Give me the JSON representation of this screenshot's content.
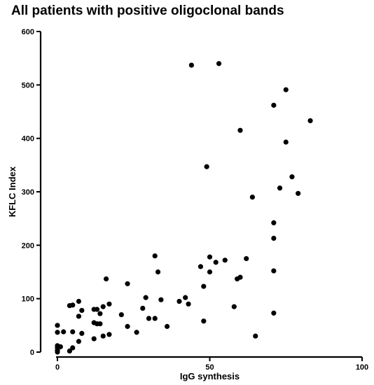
{
  "chart_data": {
    "type": "scatter",
    "title": "All patients with positive oligoclonal bands",
    "xlabel": "IgG synthesis",
    "ylabel": "KFLC Index",
    "xlim": [
      0,
      100
    ],
    "ylim": [
      0,
      600
    ],
    "xticks": [
      0,
      50,
      100
    ],
    "yticks": [
      0,
      100,
      200,
      300,
      400,
      500,
      600
    ],
    "grid": false,
    "legend": "none",
    "marker_color": "#000000",
    "points": [
      {
        "x": 0,
        "y": 0
      },
      {
        "x": 0,
        "y": 3
      },
      {
        "x": 0,
        "y": 8
      },
      {
        "x": 0,
        "y": 12
      },
      {
        "x": 0,
        "y": 37
      },
      {
        "x": 0,
        "y": 50
      },
      {
        "x": 1,
        "y": 10
      },
      {
        "x": 2,
        "y": 38
      },
      {
        "x": 4,
        "y": 2
      },
      {
        "x": 4,
        "y": 87
      },
      {
        "x": 5,
        "y": 38
      },
      {
        "x": 5,
        "y": 8
      },
      {
        "x": 5,
        "y": 88
      },
      {
        "x": 7,
        "y": 20
      },
      {
        "x": 7,
        "y": 67
      },
      {
        "x": 7,
        "y": 95
      },
      {
        "x": 8,
        "y": 35
      },
      {
        "x": 8,
        "y": 78
      },
      {
        "x": 12,
        "y": 25
      },
      {
        "x": 12,
        "y": 55
      },
      {
        "x": 12,
        "y": 80
      },
      {
        "x": 13,
        "y": 53
      },
      {
        "x": 13,
        "y": 80
      },
      {
        "x": 14,
        "y": 53
      },
      {
        "x": 14,
        "y": 72
      },
      {
        "x": 15,
        "y": 30
      },
      {
        "x": 15,
        "y": 85
      },
      {
        "x": 16,
        "y": 137
      },
      {
        "x": 17,
        "y": 33
      },
      {
        "x": 17,
        "y": 90
      },
      {
        "x": 21,
        "y": 70
      },
      {
        "x": 23,
        "y": 48
      },
      {
        "x": 23,
        "y": 128
      },
      {
        "x": 26,
        "y": 37
      },
      {
        "x": 28,
        "y": 82
      },
      {
        "x": 29,
        "y": 102
      },
      {
        "x": 30,
        "y": 63
      },
      {
        "x": 32,
        "y": 63
      },
      {
        "x": 32,
        "y": 180
      },
      {
        "x": 33,
        "y": 150
      },
      {
        "x": 34,
        "y": 98
      },
      {
        "x": 36,
        "y": 48
      },
      {
        "x": 40,
        "y": 95
      },
      {
        "x": 42,
        "y": 102
      },
      {
        "x": 43,
        "y": 90
      },
      {
        "x": 44,
        "y": 537
      },
      {
        "x": 47,
        "y": 160
      },
      {
        "x": 48,
        "y": 58
      },
      {
        "x": 48,
        "y": 123
      },
      {
        "x": 49,
        "y": 347
      },
      {
        "x": 50,
        "y": 150
      },
      {
        "x": 50,
        "y": 178
      },
      {
        "x": 52,
        "y": 168
      },
      {
        "x": 53,
        "y": 540
      },
      {
        "x": 55,
        "y": 172
      },
      {
        "x": 58,
        "y": 85
      },
      {
        "x": 59,
        "y": 137
      },
      {
        "x": 60,
        "y": 140
      },
      {
        "x": 60,
        "y": 415
      },
      {
        "x": 62,
        "y": 175
      },
      {
        "x": 64,
        "y": 290
      },
      {
        "x": 65,
        "y": 30
      },
      {
        "x": 71,
        "y": 73
      },
      {
        "x": 71,
        "y": 152
      },
      {
        "x": 71,
        "y": 213
      },
      {
        "x": 71,
        "y": 242
      },
      {
        "x": 71,
        "y": 462
      },
      {
        "x": 73,
        "y": 307
      },
      {
        "x": 75,
        "y": 393
      },
      {
        "x": 75,
        "y": 491
      },
      {
        "x": 77,
        "y": 328
      },
      {
        "x": 79,
        "y": 297
      },
      {
        "x": 83,
        "y": 433
      }
    ]
  }
}
